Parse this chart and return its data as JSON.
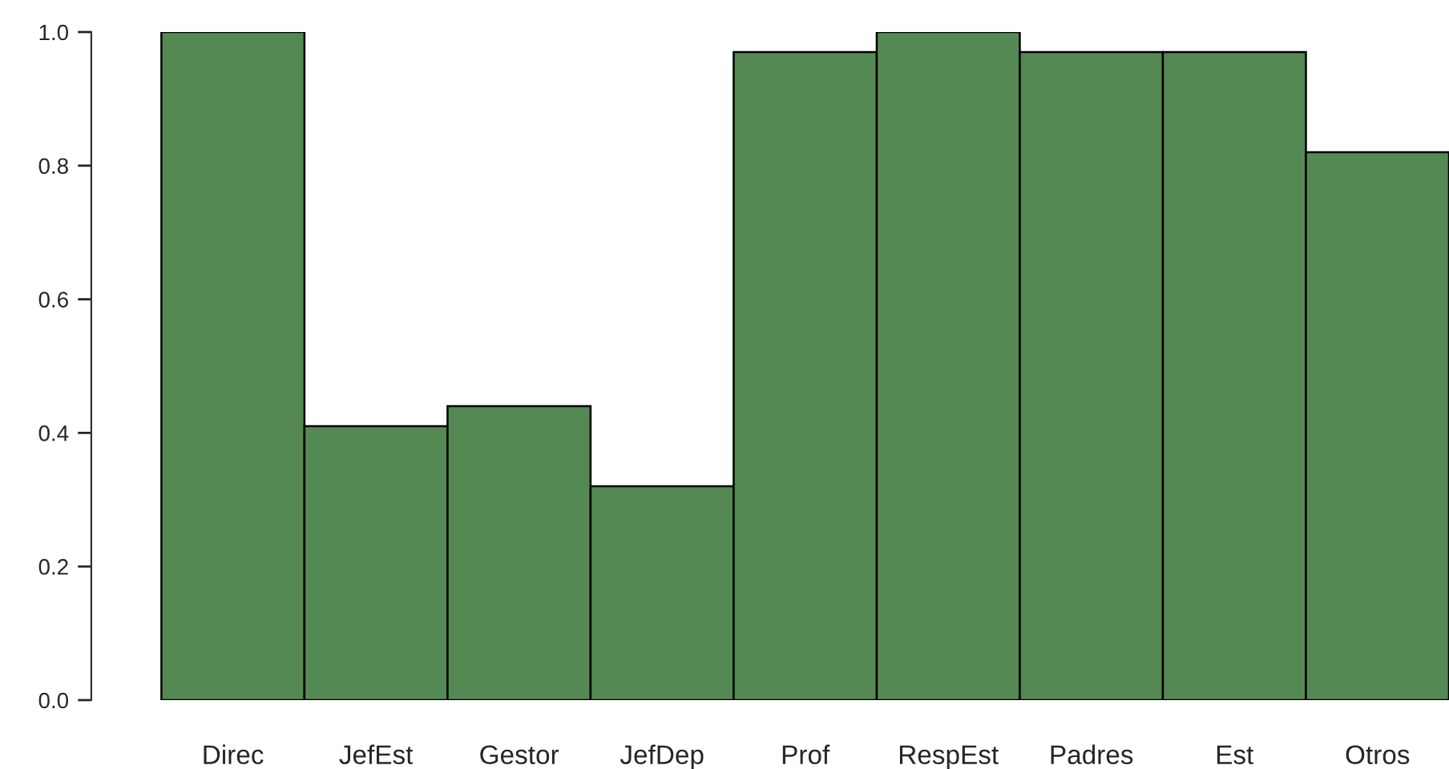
{
  "chart_data": {
    "type": "bar",
    "categories": [
      "Direc",
      "JefEst",
      "Gestor",
      "JefDep",
      "Prof",
      "RespEst",
      "Padres",
      "Est",
      "Otros"
    ],
    "values": [
      1.0,
      0.41,
      0.44,
      0.32,
      0.97,
      1.0,
      0.97,
      0.97,
      0.82
    ],
    "color": "#548953",
    "ylim": [
      0,
      1
    ],
    "yticks": [
      {
        "value": 0,
        "label": "0.0"
      },
      {
        "value": 0.2,
        "label": "0.2"
      },
      {
        "value": 0.4,
        "label": "0.4"
      },
      {
        "value": 0.6,
        "label": "0.6"
      },
      {
        "value": 0.8,
        "label": "0.8"
      },
      {
        "value": 1,
        "label": "1.0"
      }
    ],
    "grid": false,
    "legend": false
  }
}
